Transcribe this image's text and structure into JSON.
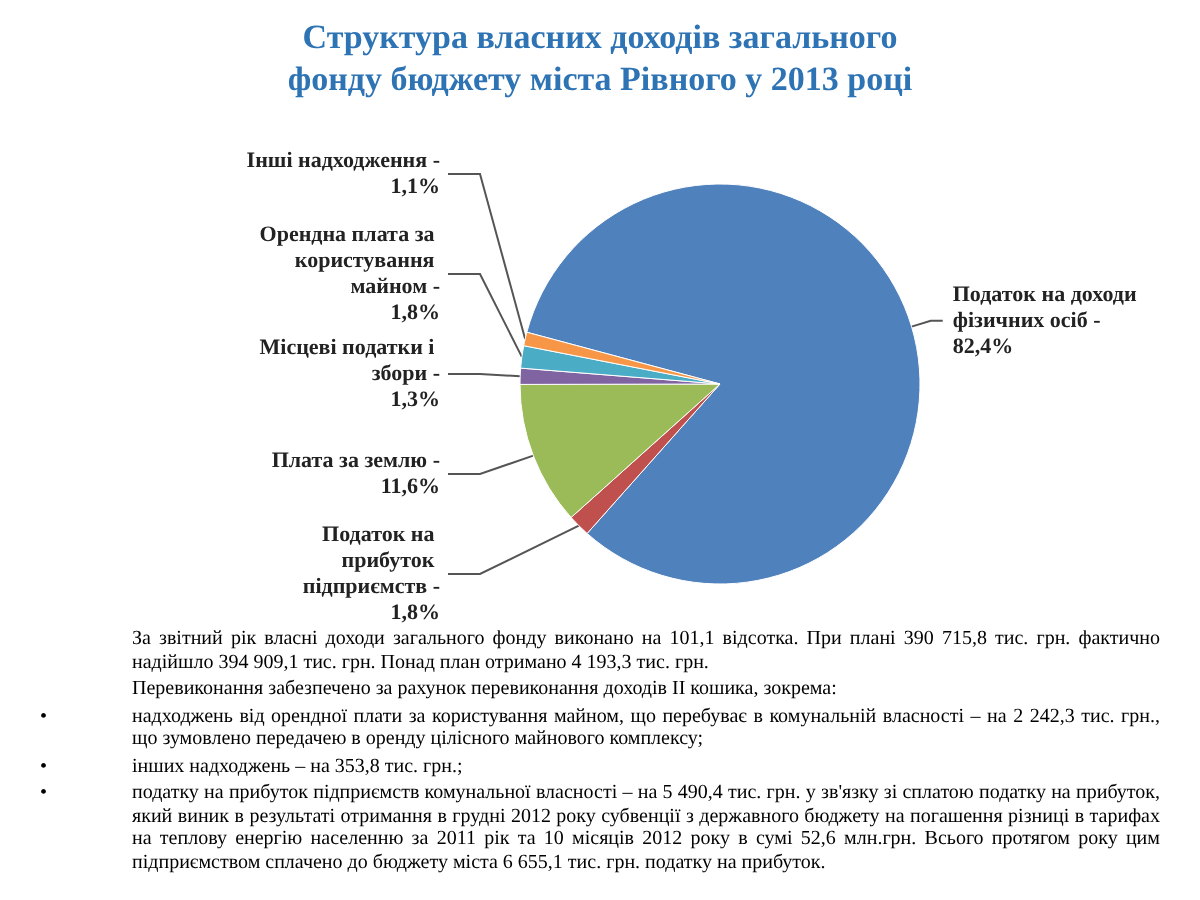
{
  "chart_data": {
    "type": "pie",
    "title": "Структура власних доходів загального фонду бюджету міста Рівного у 2013 році",
    "categories": [
      "Податок на доходи фізичних осіб -",
      "Податок на прибуток підприємств -",
      "Плата за землю -",
      "Місцеві податки і збори -",
      "Орендна плата за користування майном -",
      "Інші надходження -"
    ],
    "values": [
      82.4,
      1.8,
      11.6,
      1.3,
      1.8,
      1.1
    ],
    "value_labels": [
      "82,4%",
      "1,8%",
      "11,6%",
      "1,3%",
      "1,8%",
      "1,1%"
    ],
    "colors": [
      "#4f81bd",
      "#c0504d",
      "#9bbb59",
      "#8064a2",
      "#4bacc6",
      "#f79646"
    ],
    "annotations": [
      "За звітний рік власні доходи загального фонду виконано на 101,1 відсотка. При плані 390 715,8 тис. грн. фактично надійшло 394 909,1 тис. грн. Понад план отримано 4 193,3 тис. грн.",
      "Перевиконання забезпечено за рахунок перевиконання доходів ІІ кошика, зокрема:",
      "• надходжень від орендної плати за користування майном, що перебуває в комунальній власності – на 2 242,3 тис. грн., що зумовлено передачею в оренду цілісного майнового комплексу;",
      "• інших надходжень – на 353,8 тис. грн.;",
      "• податку на прибуток підприємств комунальної власності – на 5 490,4 тис. грн. у зв'язку зі сплатою податку на прибуток, який виник в результаті отримання в грудні 2012 року субвенції з державного бюджету на погашення різниці в тарифах на теплову енергію населенню за 2011 рік та 10 місяців 2012 року в сумі 52,6 млн.грн. Всього протягом року цим підприємством сплачено до бюджету міста 6 655,1 тис. грн. податку на прибуток."
    ]
  }
}
